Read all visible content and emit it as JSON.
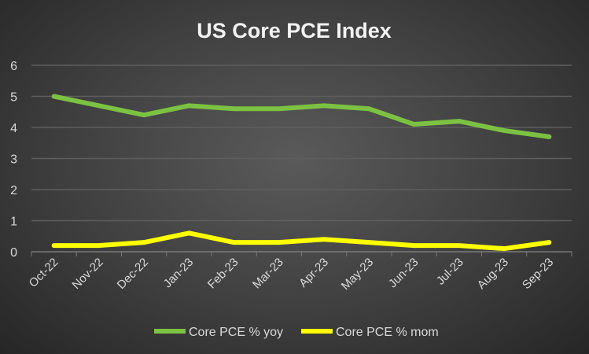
{
  "chart_data": {
    "type": "line",
    "title": "US Core PCE Index",
    "xlabel": "",
    "ylabel": "",
    "categories": [
      "Oct-22",
      "Nov-22",
      "Dec-22",
      "Jan-23",
      "Feb-23",
      "Mar-23",
      "Apr-23",
      "May-23",
      "Jun-23",
      "Jul-23",
      "Aug-23",
      "Sep-23"
    ],
    "series": [
      {
        "name": "Core PCE % yoy",
        "color": "#7cc242",
        "values": [
          5.0,
          4.7,
          4.4,
          4.7,
          4.6,
          4.6,
          4.7,
          4.6,
          4.1,
          4.2,
          3.9,
          3.7
        ]
      },
      {
        "name": "Core PCE % mom",
        "color": "#ffff00",
        "values": [
          0.2,
          0.2,
          0.3,
          0.6,
          0.3,
          0.3,
          0.4,
          0.3,
          0.2,
          0.2,
          0.1,
          0.3
        ]
      }
    ],
    "ylim": [
      0,
      6
    ],
    "yticks": [
      0,
      1,
      2,
      3,
      4,
      5,
      6
    ],
    "grid": true,
    "legend": "bottom"
  }
}
